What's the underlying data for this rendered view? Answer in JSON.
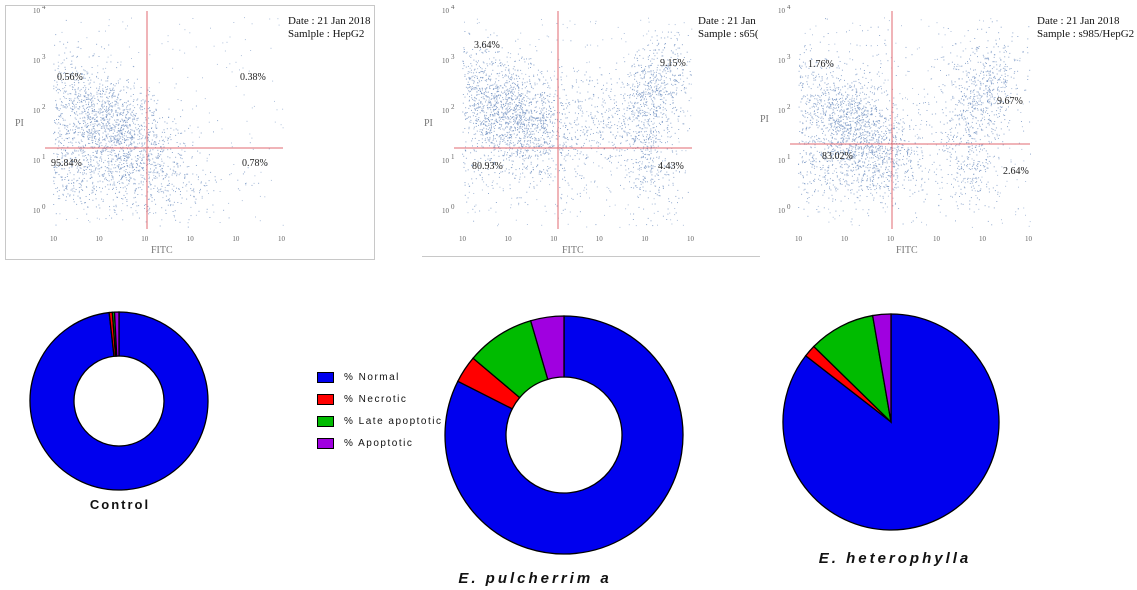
{
  "chart_data": [
    {
      "type": "scatter",
      "subtype": "flow-cytometry-quadrant",
      "xlabel": "FITC",
      "ylabel": "PI",
      "log_scale": true,
      "ytick_labels": [
        "10",
        "10",
        "10",
        "10",
        "10"
      ],
      "ytick_exponents": [
        "0",
        "1",
        "2",
        "3",
        "4"
      ],
      "date_text": "Date : 21 Jan 2018",
      "sample_text": "Samlple : HepG2",
      "quadrants": [
        {
          "position": "upper-left",
          "label": "0.56%"
        },
        {
          "position": "upper-right",
          "label": "0.38%"
        },
        {
          "position": "lower-left",
          "label": "95.84%"
        },
        {
          "position": "lower-right",
          "label": "0.78%"
        }
      ]
    },
    {
      "type": "scatter",
      "subtype": "flow-cytometry-quadrant",
      "xlabel": "FITC",
      "ylabel": "PI",
      "log_scale": true,
      "ytick_labels": [
        "10",
        "10",
        "10",
        "10",
        "10"
      ],
      "ytick_exponents": [
        "0",
        "1",
        "2",
        "3",
        "4"
      ],
      "date_text": "Date : 21 Jan",
      "sample_text": "Sample : s65(",
      "quadrants": [
        {
          "position": "upper-left",
          "label": "3.64%"
        },
        {
          "position": "upper-right",
          "label": "9.15%"
        },
        {
          "position": "lower-left",
          "label": "80.93%"
        },
        {
          "position": "lower-right",
          "label": "4.43%"
        }
      ]
    },
    {
      "type": "scatter",
      "subtype": "flow-cytometry-quadrant",
      "xlabel": "FITC",
      "ylabel": "PI",
      "log_scale": true,
      "ytick_labels": [
        "10",
        "10",
        "10",
        "10",
        "10"
      ],
      "ytick_exponents": [
        "0",
        "1",
        "2",
        "3",
        "4"
      ],
      "date_text": "Date : 21 Jan 2018",
      "sample_text": "Sample : s985/HepG2",
      "quadrants": [
        {
          "position": "upper-left",
          "label": "1.76%"
        },
        {
          "position": "upper-right",
          "label": "9.67%"
        },
        {
          "position": "lower-left",
          "label": "83.02%"
        },
        {
          "position": "lower-right",
          "label": "2.64%"
        }
      ]
    },
    {
      "type": "pie",
      "subtype": "donut",
      "title": "Control",
      "series": [
        {
          "name": "% Normal",
          "value": 95.84
        },
        {
          "name": "% Necrotic",
          "value": 0.56
        },
        {
          "name": "% Late apoptotic",
          "value": 0.38
        },
        {
          "name": "% Apoptotic",
          "value": 0.78
        }
      ]
    },
    {
      "type": "pie",
      "subtype": "donut",
      "title": "E. pulcherrim a",
      "series": [
        {
          "name": "% Normal",
          "value": 80.93
        },
        {
          "name": "% Necrotic",
          "value": 3.64
        },
        {
          "name": "% Late apoptotic",
          "value": 9.15
        },
        {
          "name": "% Apoptotic",
          "value": 4.43
        }
      ]
    },
    {
      "type": "pie",
      "title": "E. heterophylla",
      "series": [
        {
          "name": "% Normal",
          "value": 83.02
        },
        {
          "name": "% Necrotic",
          "value": 1.76
        },
        {
          "name": "% Late apoptotic",
          "value": 9.67
        },
        {
          "name": "% Apoptotic",
          "value": 2.64
        }
      ]
    }
  ],
  "legend": {
    "placement": "center",
    "items": [
      {
        "label": "% Normal",
        "color": "#0000ee"
      },
      {
        "label": "% Necrotic",
        "color": "#ff0000"
      },
      {
        "label": "% Late apoptotic",
        "color": "#00bb00"
      },
      {
        "label": "% Apoptotic",
        "color": "#a000e0"
      }
    ]
  },
  "colors": {
    "normal": "#0000ee",
    "necrotic": "#ff0000",
    "late_apoptotic": "#00bb00",
    "apoptotic": "#a000e0",
    "scatter_dot": "#6f8fc0",
    "gate_line": "#e06a70"
  }
}
